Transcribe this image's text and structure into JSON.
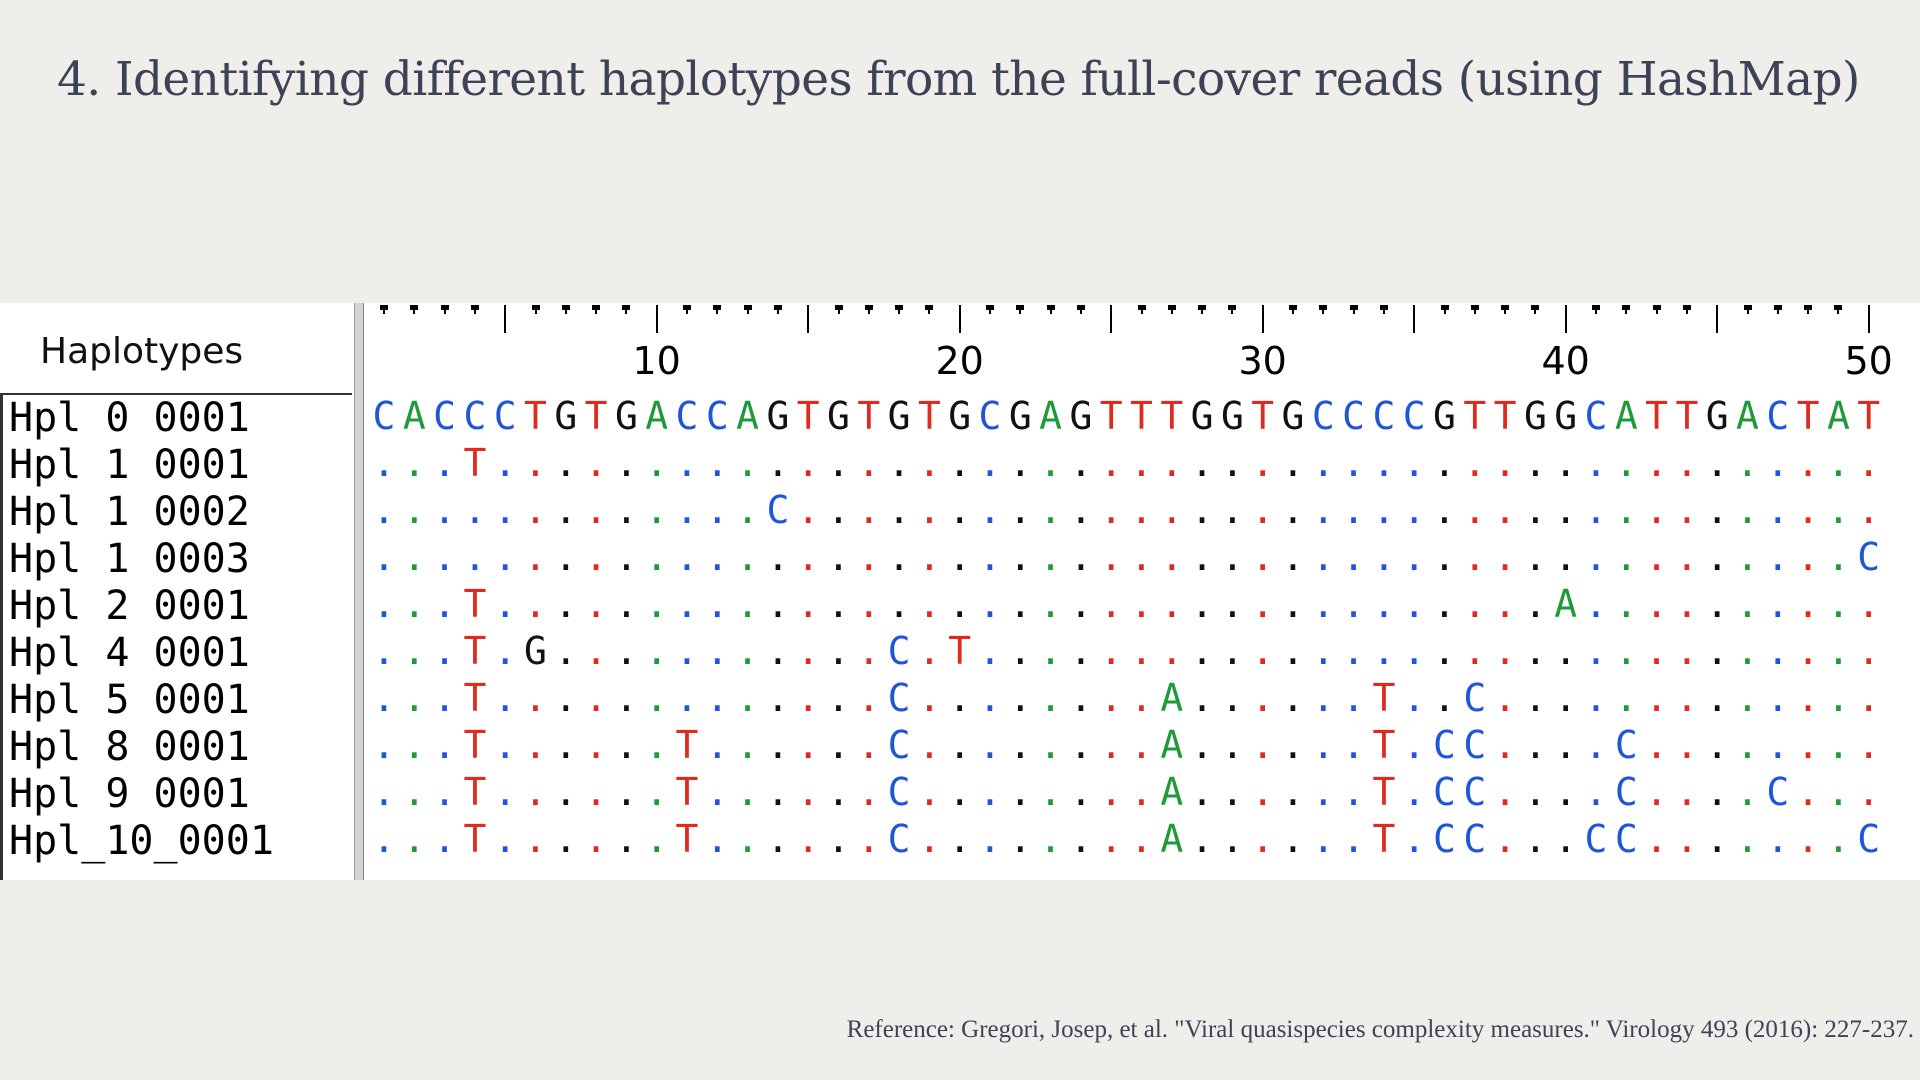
{
  "slide": {
    "title": "4. Identifying different haplotypes from the full-cover reads (using HashMap)",
    "reference": "Reference: Gregori, Josep, et al. \"Viral quasispecies complexity measures.\" Virology 493 (2016): 227-237."
  },
  "alignment": {
    "header": "Haplotypes",
    "positions": [
      "10",
      "20",
      "30",
      "40",
      "50"
    ],
    "consensus": "CACCCTGTGACCAGTGTGTGCGAGTTTGGTGCCCCGTTGGCATTGACTAT",
    "rows": [
      {
        "label": "Hpl 0 0001",
        "seq": "CACCCTGTGACCAGTGTGTGCGAGTTTGGTGCCCCGTTGGCATTGACTAT",
        "is_consensus": true
      },
      {
        "label": "Hpl 1 0001",
        "seq": "...T.............................................."
      },
      {
        "label": "Hpl 1 0002",
        "seq": ".............C...................................."
      },
      {
        "label": "Hpl 1 0003",
        "seq": ".................................................C"
      },
      {
        "label": "Hpl 2 0001",
        "seq": "...T...................................A.........."
      },
      {
        "label": "Hpl 4 0001",
        "seq": "...T.G...........C.T.............................."
      },
      {
        "label": "Hpl 5 0001",
        "seq": "...T.............C........A......T..C............."
      },
      {
        "label": "Hpl 8 0001",
        "seq": "...T......T......C........A......T.CC....C........"
      },
      {
        "label": "Hpl 9 0001",
        "seq": "...T......T......C........A......T.CC....C....C..."
      },
      {
        "label": "Hpl_10_0001",
        "seq": "...T......T......C........A......T.CC...CC.......C"
      }
    ],
    "base_colors": {
      "A": "#1f9a3a",
      "C": "#1f55d8",
      "G": "#111111",
      "T": "#e02a1d"
    }
  }
}
